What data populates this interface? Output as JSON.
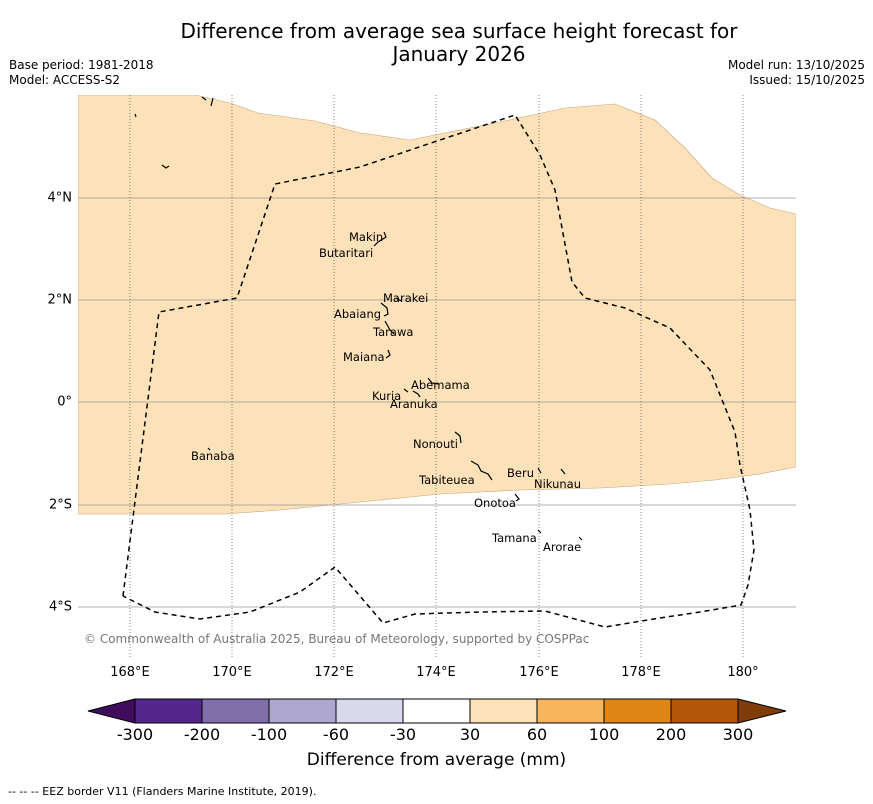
{
  "title_line1": "Difference from average sea surface height forecast for",
  "title_line2": "January 2026",
  "meta_left": {
    "base_period": "Base period: 1981-2018",
    "model": "Model: ACCESS-S2"
  },
  "meta_right": {
    "model_run": "Model run: 13/10/2025",
    "issued": "Issued: 15/10/2025"
  },
  "map": {
    "lon_ticks": [
      "168°E",
      "170°E",
      "172°E",
      "174°E",
      "176°E",
      "178°E",
      "180°"
    ],
    "lat_ticks": [
      "4°N",
      "2°N",
      "0°",
      "2°S",
      "4°S"
    ],
    "copyright": "© Commonwealth of Australia 2025, Bureau of Meteorology, supported by COSPPac",
    "shaded_category": "30 to 60",
    "shaded_color": "#fde2b9",
    "islands": [
      "Makin",
      "Butaritari",
      "Marakei",
      "Abaiang",
      "Tarawa",
      "Maiana",
      "Abemama",
      "Kuria",
      "Aranuka",
      "Banaba",
      "Nonouti",
      "Tabiteuea",
      "Beru",
      "Nikunau",
      "Onotoa",
      "Tamana",
      "Arorae"
    ]
  },
  "colorbar": {
    "label": "Difference from average (mm)",
    "ticks": [
      "-300",
      "-200",
      "-100",
      "-60",
      "-30",
      "30",
      "60",
      "100",
      "200",
      "300"
    ],
    "colors": [
      "#3f0d5c",
      "#54268e",
      "#7f70ab",
      "#ada7d0",
      "#d9d9ec",
      "#ffffff",
      "#fde2b9",
      "#f8b55c",
      "#e08617",
      "#b25708",
      "#7f3b08"
    ]
  },
  "footer": "--  --  -- EEZ border V11 (Flanders Marine Institute, 2019)."
}
